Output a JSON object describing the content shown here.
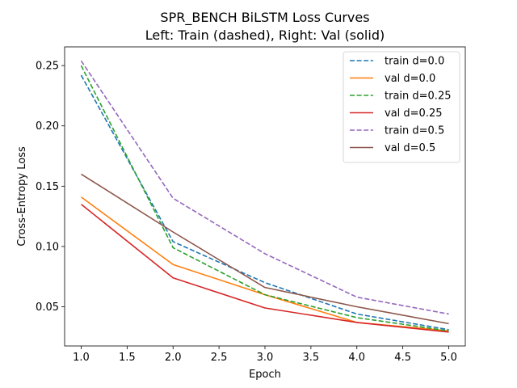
{
  "chart_data": {
    "type": "line",
    "title": "SPR_BENCH BiLSTM Loss Curves",
    "subtitle": "Left: Train (dashed), Right: Val (solid)",
    "xlabel": "Epoch",
    "ylabel": "Cross-Entropy Loss",
    "xlim": [
      0.82,
      5.18
    ],
    "ylim": [
      0.0175,
      0.2655
    ],
    "xticks": [
      "1.0",
      "1.5",
      "2.0",
      "2.5",
      "3.0",
      "3.5",
      "4.0",
      "4.5",
      "5.0"
    ],
    "yticks": [
      "0.05",
      "0.10",
      "0.15",
      "0.20",
      "0.25"
    ],
    "grid": false,
    "legend_position": "top-right",
    "x": [
      1,
      2,
      3,
      4,
      5
    ],
    "series": [
      {
        "name": "train d=0.0",
        "values": [
          0.242,
          0.104,
          0.07,
          0.044,
          0.031
        ],
        "style": "dashed",
        "color": "#1f77b4"
      },
      {
        "name": "val d=0.0",
        "values": [
          0.141,
          0.085,
          0.06,
          0.037,
          0.03
        ],
        "style": "solid",
        "color": "#ff7f0e"
      },
      {
        "name": "train d=0.25",
        "values": [
          0.25,
          0.099,
          0.06,
          0.041,
          0.03
        ],
        "style": "dashed",
        "color": "#2ca02c"
      },
      {
        "name": "val d=0.25",
        "values": [
          0.135,
          0.074,
          0.049,
          0.037,
          0.029
        ],
        "style": "solid",
        "color": "#d62728"
      },
      {
        "name": "train d=0.5",
        "values": [
          0.254,
          0.14,
          0.094,
          0.058,
          0.044
        ],
        "style": "dashed",
        "color": "#9467bd"
      },
      {
        "name": "val d=0.5",
        "values": [
          0.16,
          0.112,
          0.066,
          0.05,
          0.036
        ],
        "style": "solid",
        "color": "#8c564b"
      }
    ]
  }
}
